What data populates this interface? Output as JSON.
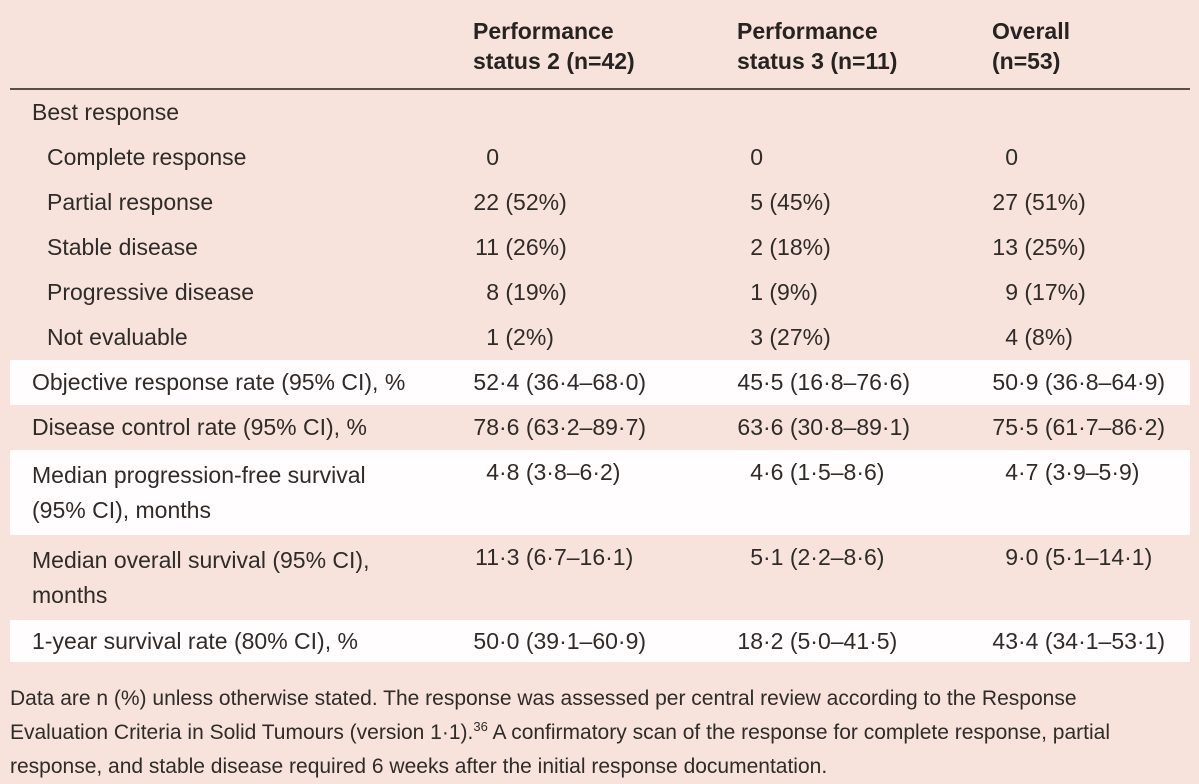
{
  "table": {
    "header_cols": [
      {
        "line1": "Performance",
        "line2": "status 2 (n=42)"
      },
      {
        "line1": "Performance",
        "line2": "status 3 (n=11)"
      },
      {
        "line1": "Overall",
        "line2": "(n=53)"
      }
    ],
    "rows": [
      {
        "label": "Best response",
        "c1": "",
        "c2": "",
        "c3": ""
      },
      {
        "label": "Complete response",
        "c1": "0",
        "c2": "0",
        "c3": "0"
      },
      {
        "label": "Partial response",
        "c1": "22 (52%)",
        "c2": "5 (45%)",
        "c3": "27 (51%)"
      },
      {
        "label": "Stable disease",
        "c1": "11 (26%)",
        "c2": "2 (18%)",
        "c3": "13 (25%)"
      },
      {
        "label": "Progressive disease",
        "c1": "8 (19%)",
        "c2": "1 (9%)",
        "c3": "9 (17%)"
      },
      {
        "label": "Not evaluable",
        "c1": "1 (2%)",
        "c2": "3 (27%)",
        "c3": "4 (8%)"
      },
      {
        "label": "Objective response rate (95% CI), %",
        "c1": "52·4 (36·4–68·0)",
        "c2": "45·5 (16·8–76·6)",
        "c3": "50·9 (36·8–64·9)"
      },
      {
        "label": "Disease control rate (95% CI), %",
        "c1": "78·6 (63·2–89·7)",
        "c2": "63·6 (30·8–89·1)",
        "c3": "75·5 (61·7–86·2)"
      },
      {
        "label": "Median progression-free survival (95% CI), months",
        "c1": "4·8 (3·8–6·2)",
        "c2": "4·6 (1·5–8·6)",
        "c3": "4·7 (3·9–5·9)"
      },
      {
        "label": "Median overall survival (95% CI), months",
        "c1": "11·3 (6·7–16·1)",
        "c2": "5·1 (2·2–8·6)",
        "c3": "9·0 (5·1–14·1)"
      },
      {
        "label": "1-year survival rate (80% CI), %",
        "c1": "50·0 (39·1–60·9)",
        "c2": "18·2 (5·0–41·5)",
        "c3": "43·4 (34·1–53·1)"
      }
    ]
  },
  "footnote": {
    "line1": "Data are n (%) unless otherwise stated. The response was assessed per central review according to the Response",
    "line2_pre": "Evaluation Criteria in Solid Tumours (version 1·1).",
    "ref": "36",
    "line2_post": "A confirmatory scan of the response for complete response, partial",
    "line3": "response, and stable disease required 6 weeks after the initial response documentation."
  }
}
